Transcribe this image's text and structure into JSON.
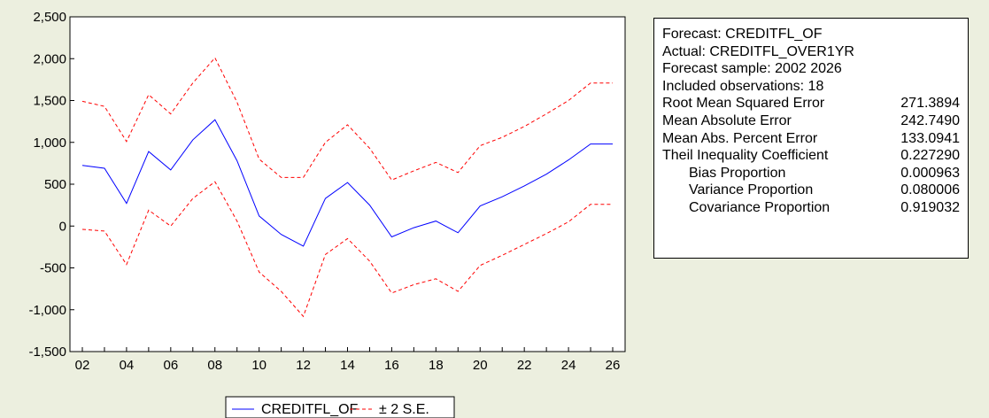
{
  "chart_data": {
    "type": "line",
    "x": [
      "02",
      "03",
      "04",
      "05",
      "06",
      "07",
      "08",
      "09",
      "10",
      "11",
      "12",
      "13",
      "14",
      "15",
      "16",
      "17",
      "18",
      "19",
      "20",
      "21",
      "22",
      "23",
      "24",
      "25",
      "26"
    ],
    "x_tick_labels": [
      "02",
      "04",
      "06",
      "08",
      "10",
      "12",
      "14",
      "16",
      "18",
      "20",
      "22",
      "24",
      "26"
    ],
    "series": [
      {
        "name": "CREDITFL_OF",
        "color": "#0000ff",
        "style": "solid",
        "values": [
          725,
          690,
          270,
          890,
          670,
          1030,
          1270,
          780,
          120,
          -100,
          -240,
          330,
          520,
          250,
          -130,
          -20,
          60,
          -80,
          240,
          350,
          480,
          620,
          790,
          980,
          980
        ]
      },
      {
        "name": "± 2 S.E.",
        "color": "#ff0000",
        "style": "dashed",
        "upper": [
          1490,
          1430,
          1010,
          1570,
          1340,
          1710,
          2010,
          1480,
          800,
          580,
          580,
          1000,
          1210,
          930,
          550,
          660,
          760,
          640,
          960,
          1060,
          1190,
          1340,
          1500,
          1710,
          1710
        ],
        "lower": [
          -40,
          -60,
          -460,
          190,
          0,
          330,
          530,
          60,
          -550,
          -780,
          -1080,
          -340,
          -150,
          -420,
          -800,
          -700,
          -630,
          -780,
          -470,
          -350,
          -220,
          -90,
          50,
          260,
          260
        ]
      }
    ],
    "y_tick_labels": [
      "2,500",
      "2,000",
      "1,500",
      "1,000",
      "500",
      "0",
      "-500",
      "-1,000",
      "-1,500"
    ],
    "ylim": [
      -1500,
      2500
    ],
    "y_ticks": [
      2500,
      2000,
      1500,
      1000,
      500,
      0,
      -500,
      -1000,
      -1500
    ],
    "legend_position": "bottom",
    "grid": false
  },
  "stats": {
    "header_lines": [
      "Forecast: CREDITFL_OF",
      "Actual: CREDITFL_OVER1YR",
      "Forecast sample: 2002 2026",
      "Included observations: 18"
    ],
    "rows": [
      {
        "label": "Root Mean Squared Error",
        "value": "271.3894",
        "indent": false
      },
      {
        "label": "Mean Absolute Error",
        "value": "242.7490",
        "indent": false
      },
      {
        "label": "Mean Abs. Percent Error",
        "value": "133.0941",
        "indent": false
      },
      {
        "label": "Theil Inequality Coefficient",
        "value": "0.227290",
        "indent": false
      },
      {
        "label": "Bias Proportion",
        "value": "0.000963",
        "indent": true
      },
      {
        "label": "Variance Proportion",
        "value": "0.080006",
        "indent": true
      },
      {
        "label": "Covariance Proportion",
        "value": "0.919032",
        "indent": true
      }
    ]
  }
}
